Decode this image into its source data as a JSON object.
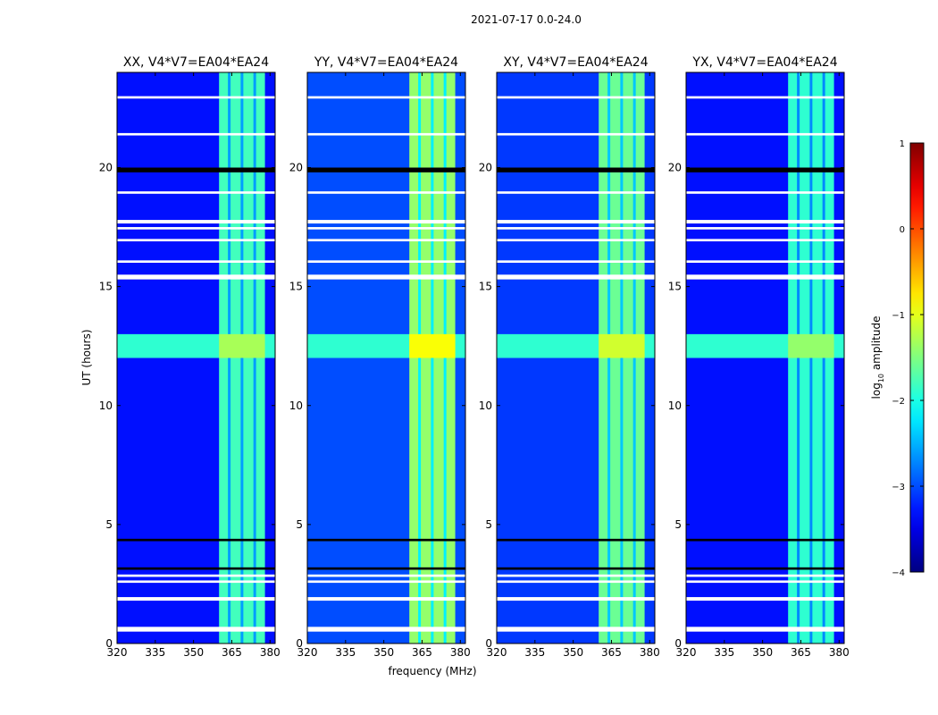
{
  "figure_title": "2021-07-17 0.0-24.0",
  "colors": {
    "background": "#ffffff",
    "axes_edge": "#000000",
    "stripe_blank": "#ffffff",
    "stripe_dark": "#000000"
  },
  "chart_data": {
    "type": "heatmap",
    "colormap": "jet",
    "xlabel": "frequency (MHz)",
    "ylabel": "UT (hours)",
    "xlim": [
      320,
      382
    ],
    "ylim": [
      0,
      24
    ],
    "xticks": [
      320,
      335,
      350,
      365,
      380
    ],
    "yticks": [
      0,
      5,
      10,
      15,
      20
    ],
    "time_band": {
      "from": 12.0,
      "to": 13.0,
      "level": -1.9
    },
    "freq_band": {
      "from": 360,
      "to": 378,
      "level": -1.8,
      "subband_gaps_mhz": [
        364,
        369,
        374
      ]
    },
    "flagged_rows_blank": [
      [
        0.5,
        0.7
      ],
      [
        1.8,
        1.95
      ],
      [
        2.55,
        2.65
      ],
      [
        2.8,
        2.9
      ],
      [
        15.3,
        15.5
      ],
      [
        16.0,
        16.1
      ],
      [
        16.9,
        17.0
      ],
      [
        17.4,
        17.5
      ],
      [
        17.65,
        17.8
      ],
      [
        18.9,
        19.0
      ],
      [
        21.35,
        21.45
      ],
      [
        22.9,
        23.0
      ]
    ],
    "flagged_rows_dark": [
      [
        3.1,
        3.2
      ],
      [
        4.3,
        4.4
      ],
      [
        19.8,
        20.0
      ]
    ],
    "panels": [
      {
        "title": "XX, V4*V7=EA04*EA24",
        "base_level": -3.3,
        "band_level": -1.8
      },
      {
        "title": "YY, V4*V7=EA04*EA24",
        "base_level": -3.0,
        "band_level": -1.4
      },
      {
        "title": "XY, V4*V7=EA04*EA24",
        "base_level": -3.1,
        "band_level": -1.6
      },
      {
        "title": "YX, V4*V7=EA04*EA24",
        "base_level": -3.3,
        "band_level": -1.9
      }
    ],
    "colorbar": {
      "label_main": "amplitude",
      "label_log": "log",
      "label_sub": "10",
      "range": [
        -4,
        1
      ],
      "ticks": [
        1,
        0,
        -1,
        -2,
        -3,
        -4
      ],
      "tick_labels": [
        "1",
        "0",
        "−1",
        "−2",
        "−3",
        "−4"
      ]
    }
  }
}
